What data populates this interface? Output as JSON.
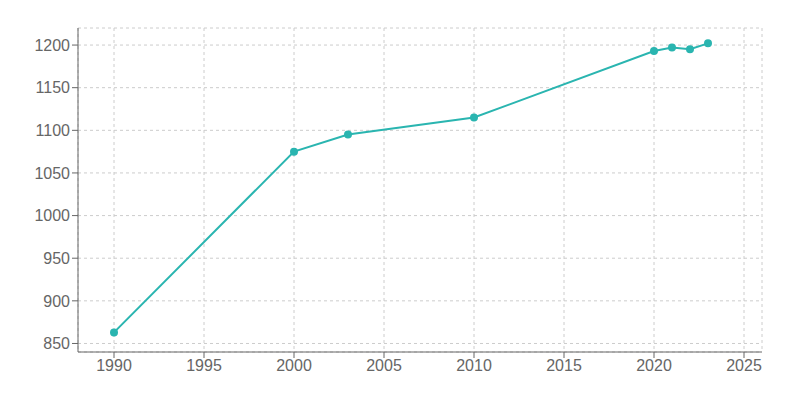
{
  "chart_data": {
    "type": "line",
    "x": [
      1990,
      2000,
      2003,
      2010,
      2020,
      2021,
      2022,
      2023
    ],
    "values": [
      863,
      1075,
      1095,
      1115,
      1193,
      1197,
      1195,
      1202
    ],
    "color": "#2ab5b0",
    "marker": "circle",
    "xlim": [
      1988,
      2026
    ],
    "ylim": [
      840,
      1220
    ],
    "xticks": [
      1990,
      1995,
      2000,
      2005,
      2010,
      2015,
      2020,
      2025
    ],
    "yticks": [
      850,
      900,
      950,
      1000,
      1050,
      1100,
      1150,
      1200
    ],
    "grid": true
  }
}
